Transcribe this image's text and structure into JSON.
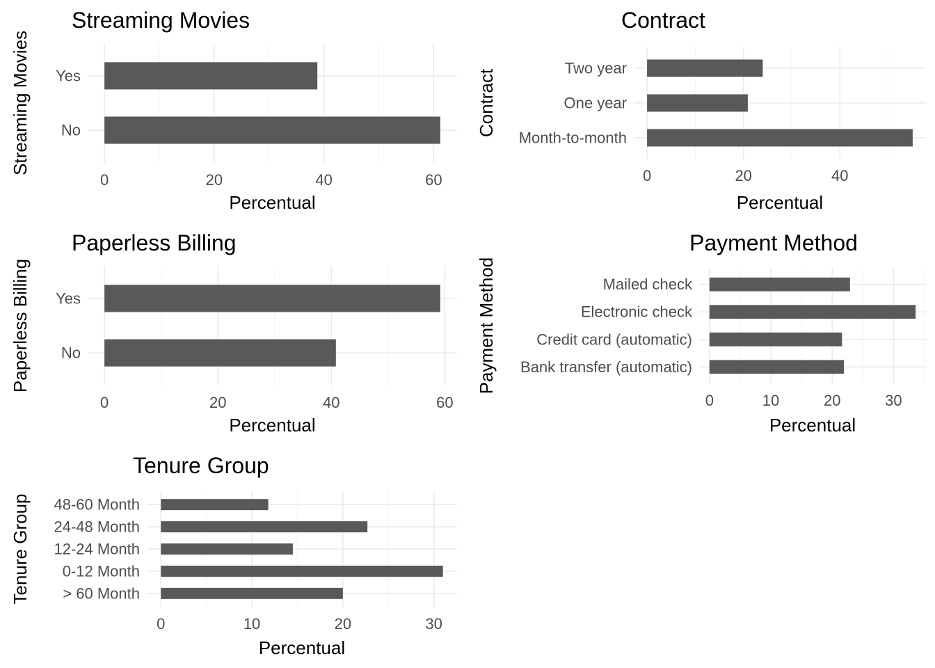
{
  "chart_data": [
    {
      "type": "bar",
      "orientation": "horizontal",
      "title": "Streaming Movies",
      "xlabel": "Percentual",
      "ylabel": "Streaming Movies",
      "categories": [
        "No",
        "Yes"
      ],
      "values": [
        61.2,
        38.8
      ],
      "xticks": [
        0,
        20,
        40,
        60
      ],
      "xlim": [
        0,
        61.2
      ],
      "grid": true,
      "bar_color": "#595959"
    },
    {
      "type": "bar",
      "orientation": "horizontal",
      "title": "Contract",
      "xlabel": "Percentual",
      "ylabel": "Contract",
      "categories": [
        "Month-to-month",
        "One year",
        "Two year"
      ],
      "values": [
        55.1,
        20.9,
        24.0
      ],
      "xticks": [
        0,
        20,
        40
      ],
      "xlim": [
        0,
        55.1
      ],
      "grid": true,
      "bar_color": "#595959"
    },
    {
      "type": "bar",
      "orientation": "horizontal",
      "title": "Paperless Billing",
      "xlabel": "Percentual",
      "ylabel": "Paperless Billing",
      "categories": [
        "No",
        "Yes"
      ],
      "values": [
        40.8,
        59.2
      ],
      "xticks": [
        0,
        20,
        40,
        60
      ],
      "xlim": [
        0,
        59.2
      ],
      "grid": true,
      "bar_color": "#595959"
    },
    {
      "type": "bar",
      "orientation": "horizontal",
      "title": "Payment Method",
      "xlabel": "Percentual",
      "ylabel": "Payment Method",
      "categories": [
        "Bank transfer (automatic)",
        "Credit card (automatic)",
        "Electronic check",
        "Mailed check"
      ],
      "values": [
        21.9,
        21.6,
        33.6,
        22.9
      ],
      "xticks": [
        0,
        10,
        20,
        30
      ],
      "xlim": [
        0,
        33.6
      ],
      "grid": true,
      "bar_color": "#595959"
    },
    {
      "type": "bar",
      "orientation": "horizontal",
      "title": "Tenure Group",
      "xlabel": "Percentual",
      "ylabel": "Tenure Group",
      "categories": [
        "> 60 Month",
        "0-12 Month",
        "12-24 Month",
        "24-48 Month",
        "48-60 Month"
      ],
      "values": [
        20.0,
        31.0,
        14.5,
        22.7,
        11.8
      ],
      "xticks": [
        0,
        10,
        20,
        30
      ],
      "xlim": [
        0,
        31.0
      ],
      "grid": true,
      "bar_color": "#595959"
    }
  ]
}
